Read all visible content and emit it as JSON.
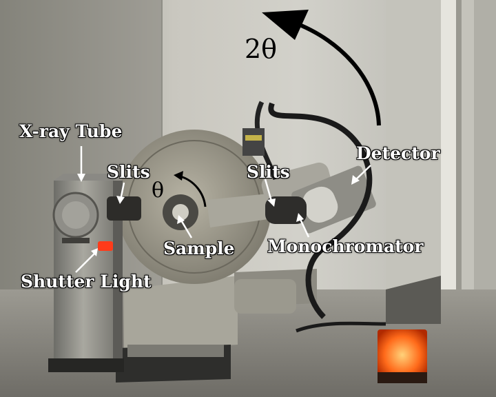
{
  "labels": {
    "two_theta": "2θ",
    "xray_tube": "X-ray Tube",
    "slits_left": "Slits",
    "theta": "θ",
    "slits_right": "Slits",
    "detector": "Detector",
    "sample": "Sample",
    "monochromator": "Monochromator",
    "shutter_light": "Shutter Light"
  },
  "colors": {
    "label_text": "#ffffff",
    "arrow_stroke": "#000000",
    "shutter_light": "#ff3b1a",
    "warning_lamp": "#ff6a1a"
  }
}
